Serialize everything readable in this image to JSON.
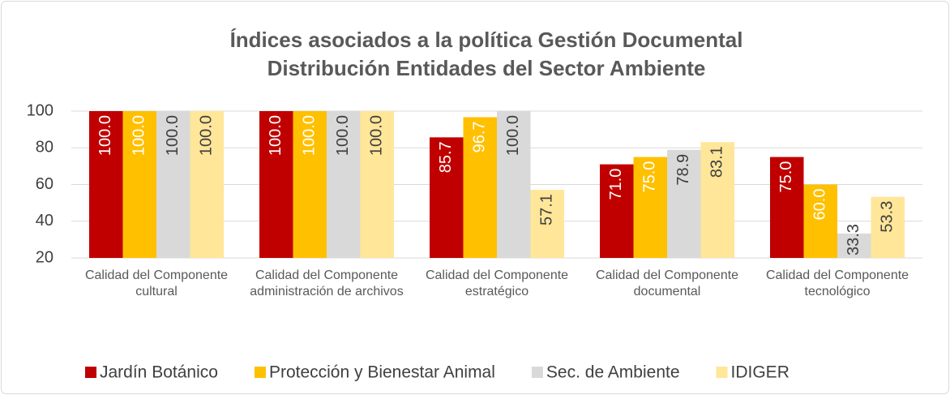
{
  "chart_data": {
    "type": "bar",
    "title": "Índices asociados a la política Gestión Documental",
    "subtitle": "Distribución Entidades del Sector Ambiente",
    "categories": [
      "Calidad del Componente cultural",
      "Calidad del Componente administración de archivos",
      "Calidad del Componente estratégico",
      "Calidad del Componente documental",
      "Calidad del Componente tecnológico"
    ],
    "series": [
      {
        "name": "Jardín Botánico",
        "color": "#c00000",
        "values": [
          100,
          100,
          85.7,
          71,
          75
        ],
        "value_labels": [
          "100.0",
          "100.0",
          "85.7",
          "71.0",
          "75.0"
        ]
      },
      {
        "name": "Protección y Bienestar Animal",
        "color": "#ffc000",
        "values": [
          100,
          100,
          96.7,
          75,
          60
        ],
        "value_labels": [
          "100.0",
          "100.0",
          "96.7",
          "75.0",
          "60.0"
        ]
      },
      {
        "name": "Sec. de Ambiente",
        "color": "#d9d9d9",
        "values": [
          100,
          100,
          100,
          78.9,
          33.3
        ],
        "value_labels": [
          "100.0",
          "100.0",
          "100.0",
          "78.9",
          "33.3"
        ]
      },
      {
        "name": "IDIGER",
        "color": "#ffe699",
        "values": [
          100,
          100,
          57.1,
          83.1,
          53.3
        ],
        "value_labels": [
          "100.0",
          "100.0",
          "57.1",
          "83.1",
          "53.3"
        ]
      }
    ],
    "ylim": [
      20,
      100
    ],
    "yticks": [
      20,
      40,
      60,
      80,
      100
    ],
    "grid": true,
    "legend": "bottom"
  }
}
